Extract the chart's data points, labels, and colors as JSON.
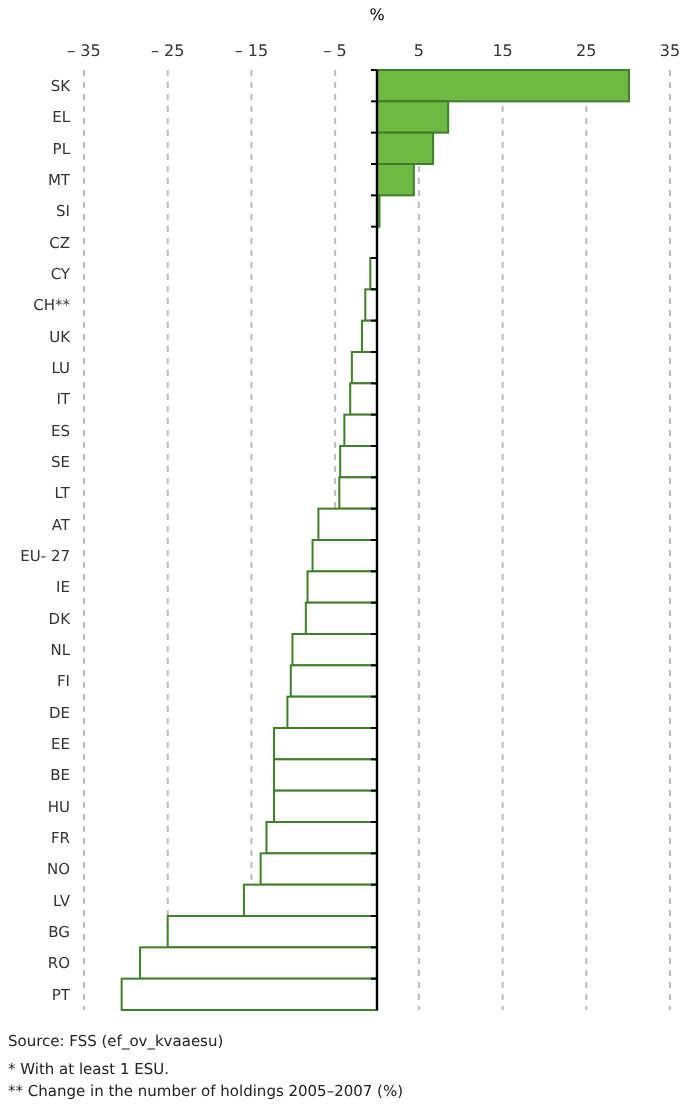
{
  "chart_data": {
    "type": "bar",
    "orientation": "horizontal",
    "xlabel": "%",
    "categories": [
      "SK",
      "EL",
      "PL",
      "MT",
      "SI",
      "CZ",
      "CY",
      "CH**",
      "UK",
      "LU",
      "IT",
      "ES",
      "SE",
      "LT",
      "AT",
      "EU- 27",
      "IE",
      "DK",
      "NL",
      "FI",
      "DE",
      "EE",
      "BE",
      "HU",
      "FR",
      "NO",
      "LV",
      "BG",
      "RO",
      "PT"
    ],
    "values": [
      30.1,
      8.5,
      6.7,
      4.4,
      0.3,
      0,
      -0.8,
      -1.4,
      -1.8,
      -3.0,
      -3.2,
      -3.9,
      -4.4,
      -4.5,
      -7.0,
      -7.7,
      -8.3,
      -8.5,
      -10.1,
      -10.3,
      -10.7,
      -12.3,
      -12.3,
      -12.3,
      -13.2,
      -13.9,
      -15.9,
      -25.0,
      -28.3,
      -30.5
    ],
    "colors": [
      "#70b844",
      "#70b844",
      "#70b844",
      "#70b844",
      "#70b844",
      "#ffffff",
      "#ffffff",
      "#ffffff",
      "#ffffff",
      "#ffffff",
      "#ffffff",
      "#ffffff",
      "#ffffff",
      "#ffffff",
      "#ffffff",
      "#ffffff",
      "#ffffff",
      "#ffffff",
      "#ffffff",
      "#ffffff",
      "#ffffff",
      "#ffffff",
      "#ffffff",
      "#ffffff",
      "#ffffff",
      "#ffffff",
      "#ffffff",
      "#ffffff",
      "#ffffff",
      "#ffffff"
    ],
    "xlim": [
      -35,
      35
    ],
    "xticks": [
      {
        "value": -35,
        "label": "– 35"
      },
      {
        "value": -25,
        "label": "– 25"
      },
      {
        "value": -15,
        "label": "– 15"
      },
      {
        "value": -5,
        "label": "– 5"
      },
      5,
      15,
      25,
      35
    ],
    "grid": "x",
    "annotations": [
      "Source: FSS (ef_ov_kvaaesu)",
      "* With at least 1 ESU.",
      "** Change in the number of holdings 2005–2007 (%)"
    ]
  }
}
